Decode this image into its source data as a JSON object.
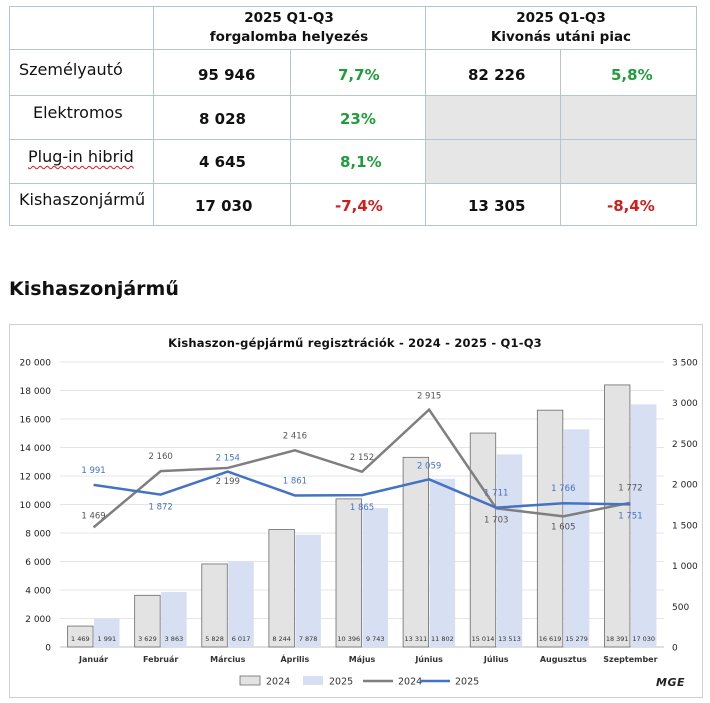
{
  "table": {
    "headers": {
      "col1": [
        "2025 Q1-Q3",
        "forgalomba helyezés"
      ],
      "col2": [
        "2025 Q1-Q3",
        "Kivonás utáni piac"
      ]
    },
    "rows": [
      {
        "label": "Személyautó",
        "reg": "95 946",
        "reg_pct": "7,7%",
        "post": "82 226",
        "post_pct": "5,8%"
      },
      {
        "label": "Elektromos",
        "reg": "8 028",
        "reg_pct": "23%",
        "post": "",
        "post_pct": ""
      },
      {
        "label": "Plug-in hibrid",
        "reg": "4 645",
        "reg_pct": "8,1%",
        "post": "",
        "post_pct": ""
      },
      {
        "label": "Kishaszonjármű",
        "reg": "17 030",
        "reg_pct": "-7,4%",
        "post": "13 305",
        "post_pct": "-8,4%"
      }
    ]
  },
  "section_title": "Kishaszonjármű",
  "logo_text": "MGE",
  "colors": {
    "bar2024": "#e3e3e3",
    "bar2024_stroke": "#6b6b6b",
    "bar2025": "#d7dff3",
    "line2024": "#7f7f7f",
    "line2025": "#4472c4",
    "positive": "#1f9d3a",
    "negative": "#d21b1b"
  },
  "chart_data": {
    "type": "bar",
    "title": "Kishaszon-gépjármű  regisztrációk - 2024 - 2025 - Q1-Q3",
    "categories": [
      "Január",
      "Február",
      "Március",
      "Április",
      "Május",
      "Június",
      "Július",
      "Augusztus",
      "Szeptember"
    ],
    "left_axis": {
      "ylim": [
        0,
        20000
      ],
      "ticks": [
        "0",
        "2 000",
        "4 000",
        "6 000",
        "8 000",
        "10 000",
        "12 000",
        "14 000",
        "16 000",
        "18 000",
        "20 000"
      ]
    },
    "right_axis": {
      "ylim": [
        0,
        3500
      ],
      "ticks": [
        "0",
        "500",
        "1 000",
        "1 500",
        "2 000",
        "2 500",
        "3 000",
        "3 500"
      ]
    },
    "series": [
      {
        "name": "2024",
        "kind": "bar",
        "axis": "left",
        "values": [
          1469,
          3629,
          5828,
          8244,
          10396,
          13311,
          15014,
          16619,
          18391
        ],
        "labels": [
          "1 469",
          "3 629",
          "5 828",
          "8 244",
          "10 396",
          "13 311",
          "15 014",
          "16 619",
          "18 391"
        ]
      },
      {
        "name": "2025",
        "kind": "bar",
        "axis": "left",
        "values": [
          1991,
          3863,
          6017,
          7878,
          9743,
          11802,
          13513,
          15279,
          17030
        ],
        "labels": [
          "1 991",
          "3 863",
          "6 017",
          "7 878",
          "9 743",
          "11 802",
          "13 513",
          "15 279",
          "17 030"
        ]
      },
      {
        "name": "2024",
        "kind": "line",
        "axis": "right",
        "values": [
          1469,
          2160,
          2199,
          2416,
          2152,
          2915,
          1703,
          1605,
          1772
        ],
        "labels": [
          "1 469",
          "2 160",
          "2 199",
          "2 416",
          "2 152",
          "2 915",
          "1 703",
          "1 605",
          "1 772"
        ]
      },
      {
        "name": "2025",
        "kind": "line",
        "axis": "right",
        "values": [
          1991,
          1872,
          2154,
          1861,
          1865,
          2059,
          1711,
          1766,
          1751
        ],
        "labels": [
          "1 991",
          "1 872",
          "2 154",
          "1 861",
          "1 865",
          "2 059",
          "1 711",
          "1 766",
          "1 751"
        ]
      }
    ],
    "grid": "horizontal",
    "legend": "bottom"
  }
}
